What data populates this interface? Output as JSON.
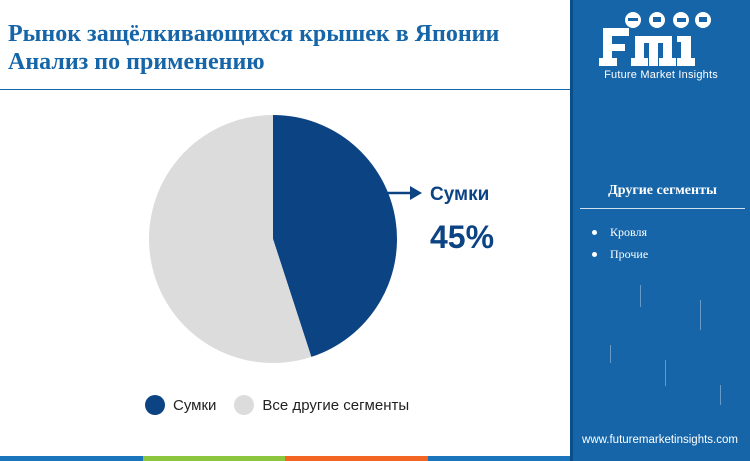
{
  "header": {
    "title_line1": "Рынок защёлкивающихся крышек в Японии",
    "title_line2": "Анализ по применению"
  },
  "chart_data": {
    "type": "pie",
    "slices": [
      {
        "name": "Сумки",
        "value": 45,
        "color": "#0c4383"
      },
      {
        "name": "Все другие сегменты",
        "value": 55,
        "color": "#dcdcdc"
      }
    ],
    "callout": {
      "label": "Сумки",
      "value_text": "45%"
    }
  },
  "legend": {
    "items": [
      {
        "label": "Сумки",
        "color": "#0c4383"
      },
      {
        "label": "Все другие сегменты",
        "color": "#dcdcdc"
      }
    ]
  },
  "sidebar": {
    "logo_text": "Future Market Insights",
    "segments_title": "Другие сегменты",
    "segments": [
      "Кровля",
      "Прочие"
    ],
    "website": "www.futuremarketinsights.com"
  },
  "colors": {
    "brand_blue": "#1665a8",
    "title_blue": "#1565a8",
    "slice_dark": "#0c4383",
    "slice_light": "#dcdcdc",
    "bottom_bar": [
      "#1b75bc",
      "#8cc63f",
      "#f26522",
      "#1b75bc"
    ]
  }
}
